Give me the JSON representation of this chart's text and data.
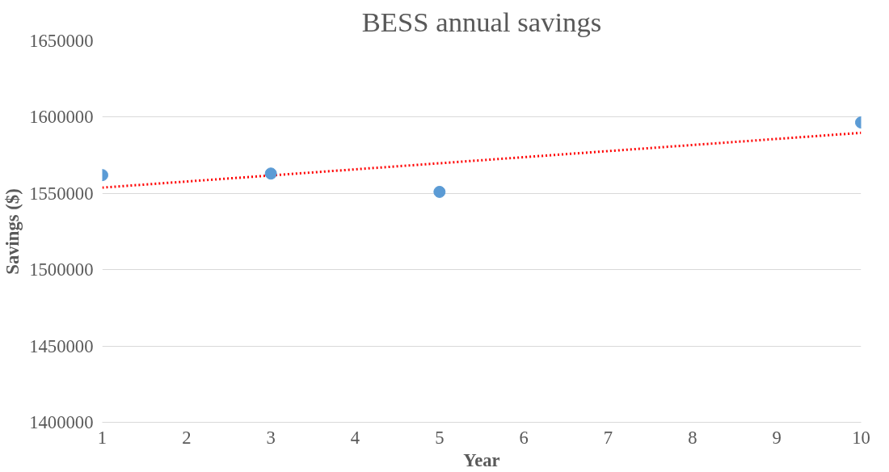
{
  "chart_data": {
    "type": "scatter",
    "title": "BESS annual savings",
    "xlabel": "Year",
    "ylabel": "Savings ($)",
    "xlim": [
      1,
      10
    ],
    "xticks": [
      1,
      2,
      3,
      4,
      5,
      6,
      7,
      8,
      9,
      10
    ],
    "ylim": [
      1400000,
      1650000
    ],
    "yticks": [
      1400000,
      1450000,
      1500000,
      1550000,
      1600000,
      1650000
    ],
    "grid": "y",
    "series": [
      {
        "marker": "circle",
        "color": "#5b9bd5",
        "x": [
          1,
          3,
          5,
          10
        ],
        "values": [
          1562000,
          1563000,
          1551000,
          1596500
        ]
      },
      {
        "type": "line",
        "marker": "none",
        "color": "#ff0000",
        "line_style": "dotted",
        "x": [
          1,
          10
        ],
        "values": [
          1553800,
          1589700
        ]
      }
    ]
  }
}
